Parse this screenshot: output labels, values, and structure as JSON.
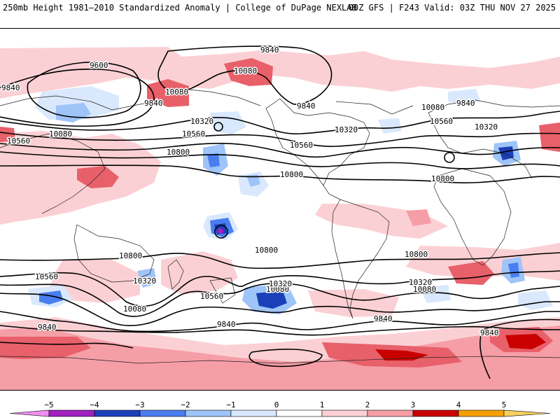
{
  "header": {
    "title": "250mb Height 1981–2010 Standardized Anomaly | College of DuPage NEXLAB",
    "model_info": "00Z GFS | F243 Valid: 03Z THU NOV 27 2025"
  },
  "map": {
    "projection": "global-cylindrical",
    "contour_labels": [
      "9600",
      "9840",
      "9840",
      "9840",
      "9840",
      "9840",
      "9840",
      "9840",
      "9840",
      "9840",
      "10080",
      "10080",
      "10080",
      "10080",
      "10080",
      "10080",
      "10080",
      "10320",
      "10320",
      "10320",
      "10320",
      "10320",
      "10320",
      "10560",
      "10560",
      "10560",
      "10560",
      "10560",
      "10560",
      "10800",
      "10800",
      "10800",
      "10800",
      "10800",
      "10800"
    ],
    "anomaly_colors": {
      "-5": "#f08ff0",
      "-4": "#a020c0",
      "-3": "#1a3fb8",
      "-2": "#4a7ef0",
      "-1": "#bcd8fb",
      "1": "#fbd0d4",
      "2": "#f59ea6",
      "3": "#e8606a",
      "4": "#c80000",
      "5": "#f5a000"
    }
  },
  "colorbar": {
    "ticks": [
      "−5",
      "−4",
      "−3",
      "−2",
      "−1",
      "0",
      "1",
      "2",
      "3",
      "4",
      "5"
    ],
    "segments": [
      {
        "range": "-5 to -4",
        "color": "#a020c0"
      },
      {
        "range": "-4 to -3",
        "color": "#1a3fb8"
      },
      {
        "range": "-3 to -2",
        "color": "#4a7ef0"
      },
      {
        "range": "-2 to -1",
        "color": "#9ec4f8"
      },
      {
        "range": "-1 to 0",
        "color": "#d9e8fd"
      },
      {
        "range": "0 to 1",
        "color": "#ffffff"
      },
      {
        "range": "1 to 2",
        "color": "#fbd0d4"
      },
      {
        "range": "2 to 3",
        "color": "#f59ea6"
      },
      {
        "range": "3 to 4",
        "color": "#c80000"
      },
      {
        "range": "4 to 5",
        "color": "#f5a000"
      }
    ],
    "low_extend_color": "#f08ff0",
    "high_extend_color": "#f7d060"
  }
}
